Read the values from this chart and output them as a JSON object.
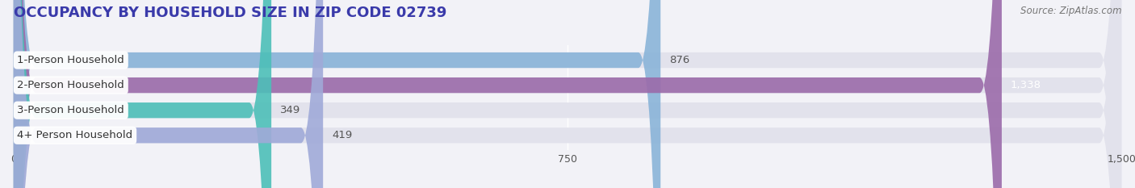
{
  "title": "OCCUPANCY BY HOUSEHOLD SIZE IN ZIP CODE 02739",
  "source": "Source: ZipAtlas.com",
  "categories": [
    "1-Person Household",
    "2-Person Household",
    "3-Person Household",
    "4+ Person Household"
  ],
  "values": [
    876,
    1338,
    349,
    419
  ],
  "bar_colors": [
    "#8ab4d8",
    "#9b6baa",
    "#4dbfb8",
    "#a0aad8"
  ],
  "value_labels": [
    "876",
    "1,338",
    "349",
    "419"
  ],
  "value_label_colors": [
    "#555555",
    "#ffffff",
    "#555555",
    "#555555"
  ],
  "xlim": [
    0,
    1500
  ],
  "xticks": [
    0,
    750,
    1500
  ],
  "background_color": "#f2f2f7",
  "bar_background_color": "#e2e2ec",
  "title_fontsize": 13,
  "source_fontsize": 8.5,
  "label_fontsize": 9.5,
  "value_fontsize": 9.5,
  "bar_height": 0.62,
  "bar_gap": 0.38
}
